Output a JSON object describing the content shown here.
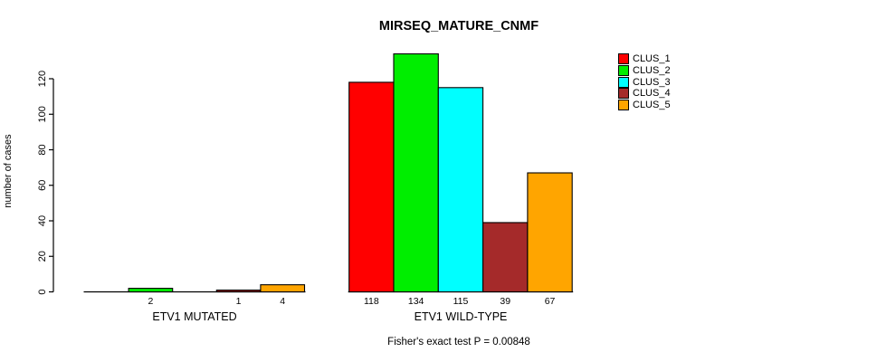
{
  "chart_data": {
    "type": "bar",
    "title": "MIRSEQ_MATURE_CNMF",
    "ylabel": "number of cases",
    "xlabel": "",
    "caption": "Fisher's exact test P = 0.00848",
    "categories": [
      "ETV1 MUTATED",
      "ETV1 WILD-TYPE"
    ],
    "series": [
      {
        "name": "CLUS_1",
        "color": "#FF0000",
        "values": [
          0,
          118
        ]
      },
      {
        "name": "CLUS_2",
        "color": "#00EE00",
        "values": [
          2,
          134
        ]
      },
      {
        "name": "CLUS_3",
        "color": "#00FFFF",
        "values": [
          0,
          115
        ]
      },
      {
        "name": "CLUS_4",
        "color": "#A52A2A",
        "values": [
          1,
          39
        ]
      },
      {
        "name": "CLUS_5",
        "color": "#FFA500",
        "values": [
          4,
          67
        ]
      }
    ],
    "bar_labels": {
      "ETV1 MUTATED": [
        "2",
        "1",
        "4"
      ],
      "ETV1 WILD-TYPE": [
        "118",
        "134",
        "115",
        "39",
        "67"
      ]
    },
    "yticks": [
      0,
      20,
      40,
      60,
      80,
      100,
      120
    ],
    "ylim": [
      0,
      134
    ],
    "grid": "off",
    "legend_position": "top-right",
    "axis_color": "#000000"
  }
}
